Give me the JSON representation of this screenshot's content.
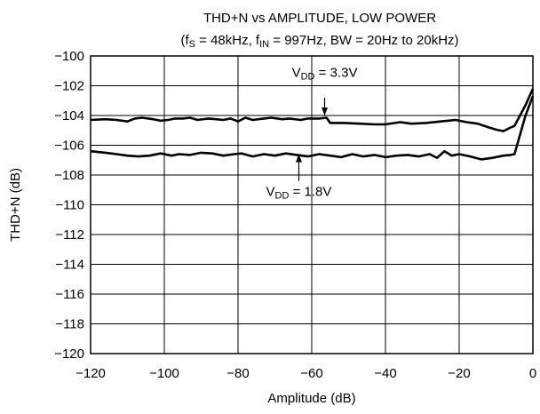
{
  "chart_data": {
    "type": "line",
    "title": "THD+N vs AMPLITUDE, LOW POWER",
    "subtitle": {
      "parts": [
        {
          "t": "(f"
        },
        {
          "t": "S",
          "sub": true
        },
        {
          "t": " = 48kHz, f"
        },
        {
          "t": "IN",
          "sub": true
        },
        {
          "t": " = 997Hz, BW = 20Hz to 20kHz)"
        }
      ]
    },
    "xlabel": "Amplitude (dB)",
    "ylabel": "THD+N (dB)",
    "xlim": [
      -120,
      0
    ],
    "ylim": [
      -120,
      -100
    ],
    "xticks": [
      -120,
      -100,
      -80,
      -60,
      -40,
      -20,
      0
    ],
    "xtick_labels": [
      "−120",
      "−100",
      "−80",
      "−60",
      "−40",
      "−20",
      "0"
    ],
    "yticks": [
      -100,
      -102,
      -104,
      -106,
      -108,
      -110,
      -112,
      -114,
      -116,
      -118,
      -120
    ],
    "ytick_labels": [
      "−100",
      "−102",
      "−104",
      "−106",
      "−108",
      "−110",
      "−112",
      "−114",
      "−116",
      "−118",
      "−120"
    ],
    "grid": true,
    "series": [
      {
        "x": [
          -120,
          -116,
          -113,
          -110,
          -108,
          -106,
          -103,
          -101,
          -99,
          -97,
          -95,
          -93,
          -91,
          -88,
          -86,
          -84,
          -82,
          -80,
          -78,
          -76,
          -73,
          -71,
          -68,
          -66,
          -63,
          -61,
          -58,
          -56,
          -55,
          -51,
          -47,
          -43,
          -40,
          -36,
          -33,
          -29,
          -25,
          -21,
          -18,
          -15,
          -12,
          -10,
          -8,
          -6,
          -5,
          -2,
          0
        ],
        "y": [
          -104.3,
          -104.25,
          -104.3,
          -104.4,
          -104.2,
          -104.15,
          -104.25,
          -104.35,
          -104.3,
          -104.2,
          -104.2,
          -104.15,
          -104.3,
          -104.2,
          -104.25,
          -104.3,
          -104.2,
          -104.4,
          -104.15,
          -104.3,
          -104.2,
          -104.15,
          -104.25,
          -104.2,
          -104.3,
          -104.2,
          -104.2,
          -104.15,
          -104.5,
          -104.5,
          -104.55,
          -104.6,
          -104.6,
          -104.45,
          -104.55,
          -104.5,
          -104.4,
          -104.3,
          -104.45,
          -104.55,
          -104.8,
          -104.95,
          -105.05,
          -104.8,
          -104.7,
          -103.3,
          -102.2
        ]
      },
      {
        "x": [
          -120,
          -116,
          -113,
          -110,
          -107,
          -104,
          -101,
          -98,
          -96,
          -93,
          -90,
          -87,
          -84,
          -81,
          -79,
          -76,
          -73,
          -70,
          -67,
          -64,
          -61,
          -58,
          -55,
          -52,
          -49,
          -46,
          -43,
          -40,
          -37,
          -34,
          -31,
          -28,
          -26,
          -24,
          -22,
          -20,
          -17,
          -14,
          -11,
          -8,
          -6,
          -5,
          -2,
          0
        ],
        "y": [
          -106.4,
          -106.5,
          -106.6,
          -106.7,
          -106.75,
          -106.7,
          -106.55,
          -106.7,
          -106.6,
          -106.65,
          -106.5,
          -106.55,
          -106.7,
          -106.6,
          -106.55,
          -106.75,
          -106.6,
          -106.7,
          -106.55,
          -106.65,
          -106.75,
          -106.6,
          -106.7,
          -106.8,
          -106.6,
          -106.75,
          -106.65,
          -106.8,
          -106.7,
          -106.65,
          -106.75,
          -106.6,
          -106.85,
          -106.4,
          -106.7,
          -106.6,
          -106.75,
          -106.95,
          -106.85,
          -106.7,
          -106.65,
          -106.6,
          -104.0,
          -102.7
        ]
      }
    ],
    "annotations": [
      {
        "parts": [
          {
            "t": "V"
          },
          {
            "t": "DD",
            "sub": true
          },
          {
            "t": " = 3.3V"
          }
        ],
        "x": -56.5,
        "y": -101.4,
        "arrow_from": [
          -56.5,
          -102.8
        ],
        "arrow_to": [
          -56.5,
          -104.0
        ]
      },
      {
        "parts": [
          {
            "t": "V"
          },
          {
            "t": "DD",
            "sub": true
          },
          {
            "t": " = 1.8V"
          }
        ],
        "x": -63.5,
        "y": -109.4,
        "arrow_from": [
          -63.5,
          -108.4
        ],
        "arrow_to": [
          -63.5,
          -106.6
        ]
      }
    ]
  }
}
